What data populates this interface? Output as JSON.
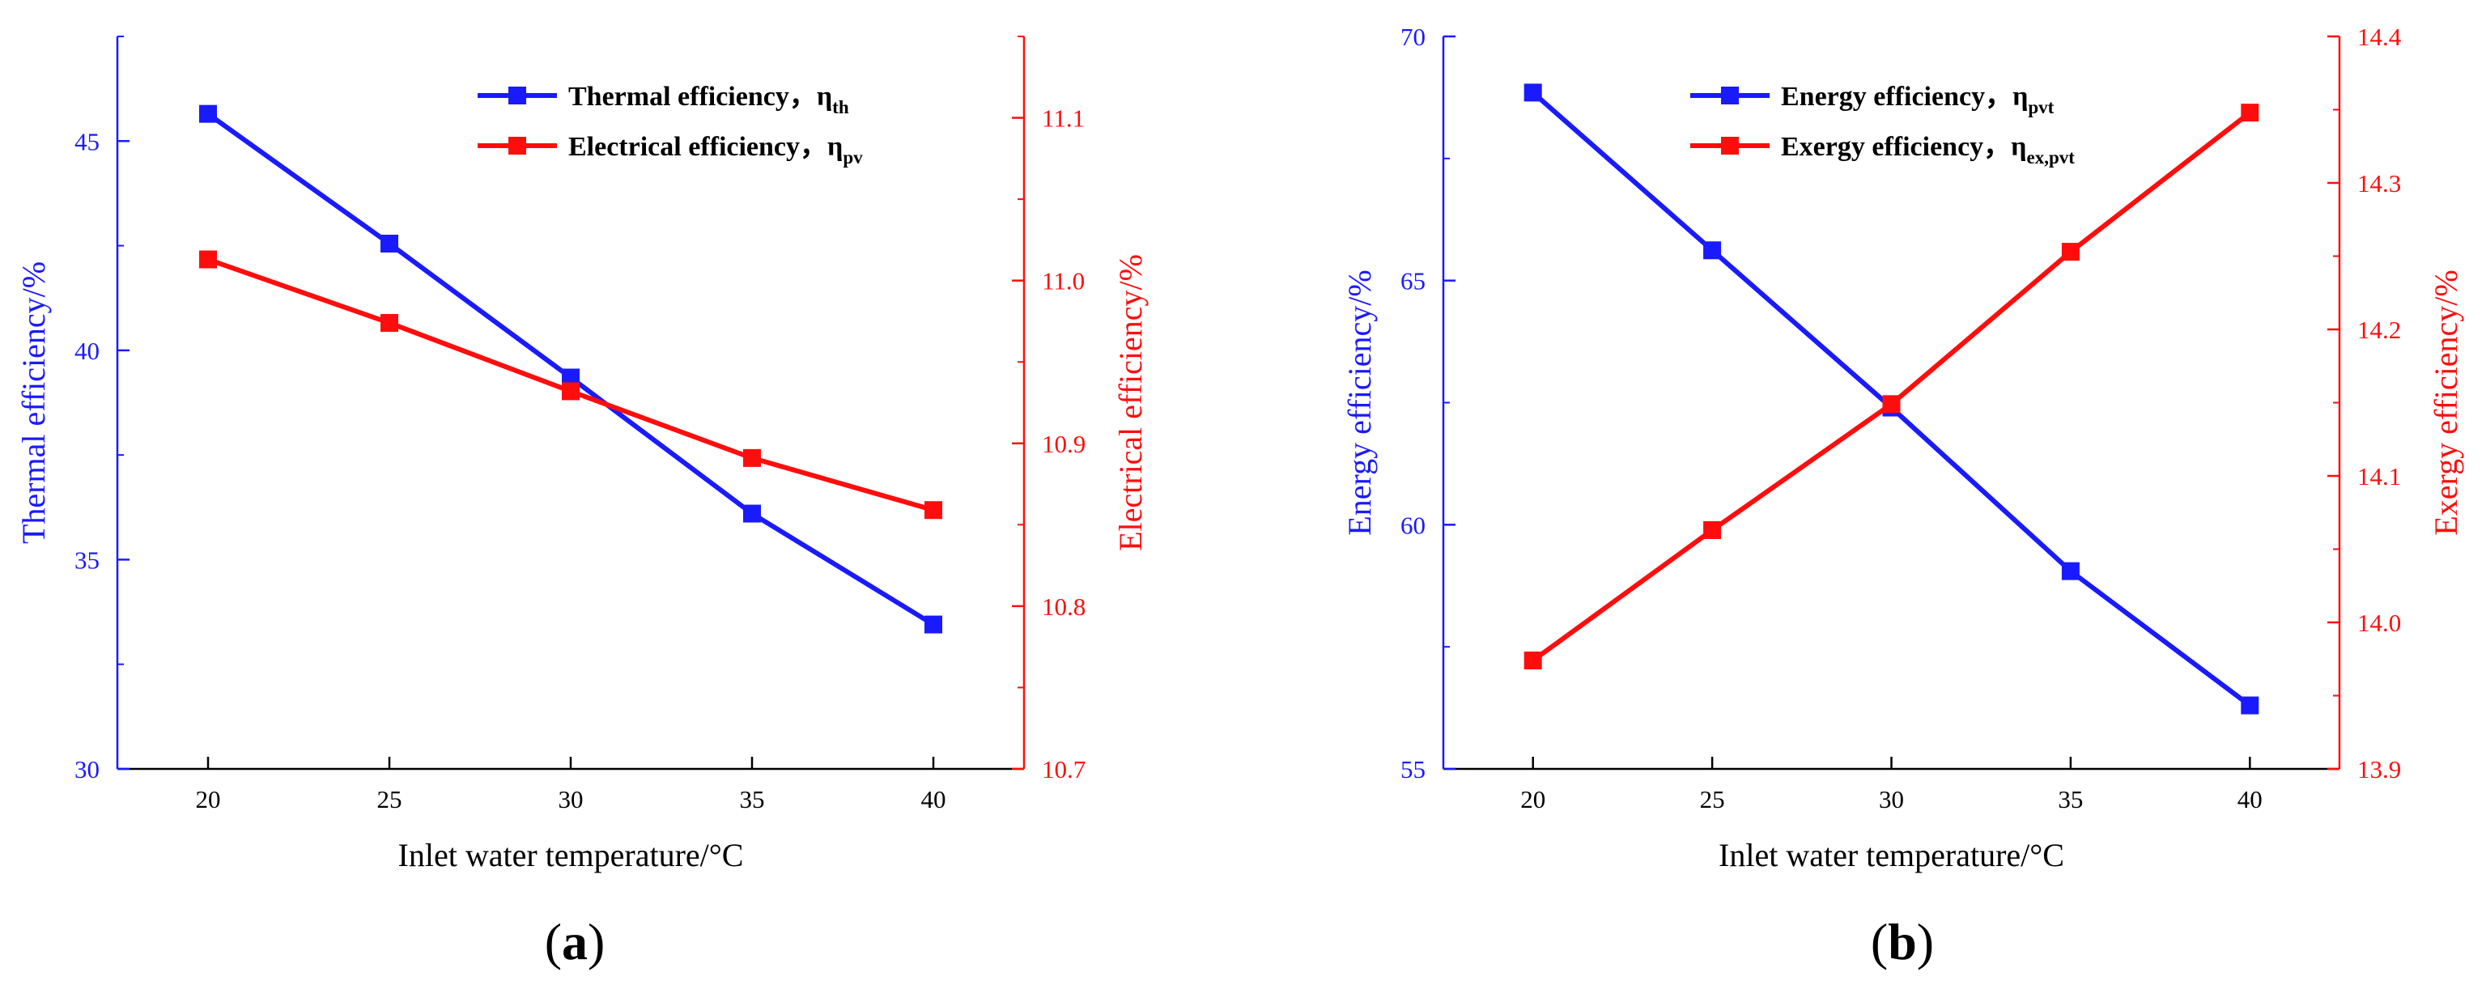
{
  "colors": {
    "left_series": "#1a1aff",
    "right_series": "#ff0d0d",
    "axis": "#000000"
  },
  "chart_data": [
    {
      "type": "line",
      "panel_label": {
        "open": "(",
        "letter": "a",
        "close": ")"
      },
      "xlabel": "Inlet water temperature/°C",
      "x": [
        20,
        25,
        30,
        35,
        40
      ],
      "xticks": [
        "20",
        "25",
        "30",
        "35",
        "40"
      ],
      "xlim": [
        17.5,
        42.5
      ],
      "left_axis": {
        "label": "Thermal efficiency/%",
        "ylim": [
          30,
          47.5
        ],
        "ticks": [
          "30",
          "35",
          "40",
          "45"
        ]
      },
      "right_axis": {
        "label": "Electrical efficiency/%",
        "ylim": [
          10.7,
          11.15
        ],
        "ticks": [
          "10.7",
          "10.8",
          "10.9",
          "11.0",
          "11.1"
        ]
      },
      "series": [
        {
          "name": "Thermal efficiency，η",
          "subscript": "th",
          "axis": "left",
          "values": [
            45.65,
            42.55,
            39.35,
            36.1,
            33.45
          ]
        },
        {
          "name": "Electrical efficiency，η",
          "subscript": "pv",
          "axis": "right",
          "values": [
            11.013,
            10.974,
            10.932,
            10.891,
            10.859
          ]
        }
      ]
    },
    {
      "type": "line",
      "panel_label": {
        "open": "(",
        "letter": "b",
        "close": ")"
      },
      "xlabel": "Inlet water temperature/°C",
      "x": [
        20,
        25,
        30,
        35,
        40
      ],
      "xticks": [
        "20",
        "25",
        "30",
        "35",
        "40"
      ],
      "xlim": [
        17.5,
        42.5
      ],
      "left_axis": {
        "label": "Energy efficiency/%",
        "ylim": [
          55,
          70
        ],
        "ticks": [
          "55",
          "60",
          "65",
          "70"
        ]
      },
      "right_axis": {
        "label": "Exergy efficiency/%",
        "ylim": [
          13.9,
          14.4
        ],
        "ticks": [
          "13.9",
          "14.0",
          "14.1",
          "14.2",
          "14.3",
          "14.4"
        ]
      },
      "series": [
        {
          "name": "Energy efficiency，η",
          "subscript": "pvt",
          "axis": "left",
          "values": [
            68.85,
            65.62,
            62.4,
            59.05,
            56.3
          ]
        },
        {
          "name": "Exergy efficiency，η",
          "subscript": "ex,pvt",
          "axis": "right",
          "values": [
            13.974,
            14.063,
            14.149,
            14.253,
            14.348
          ]
        }
      ]
    }
  ]
}
